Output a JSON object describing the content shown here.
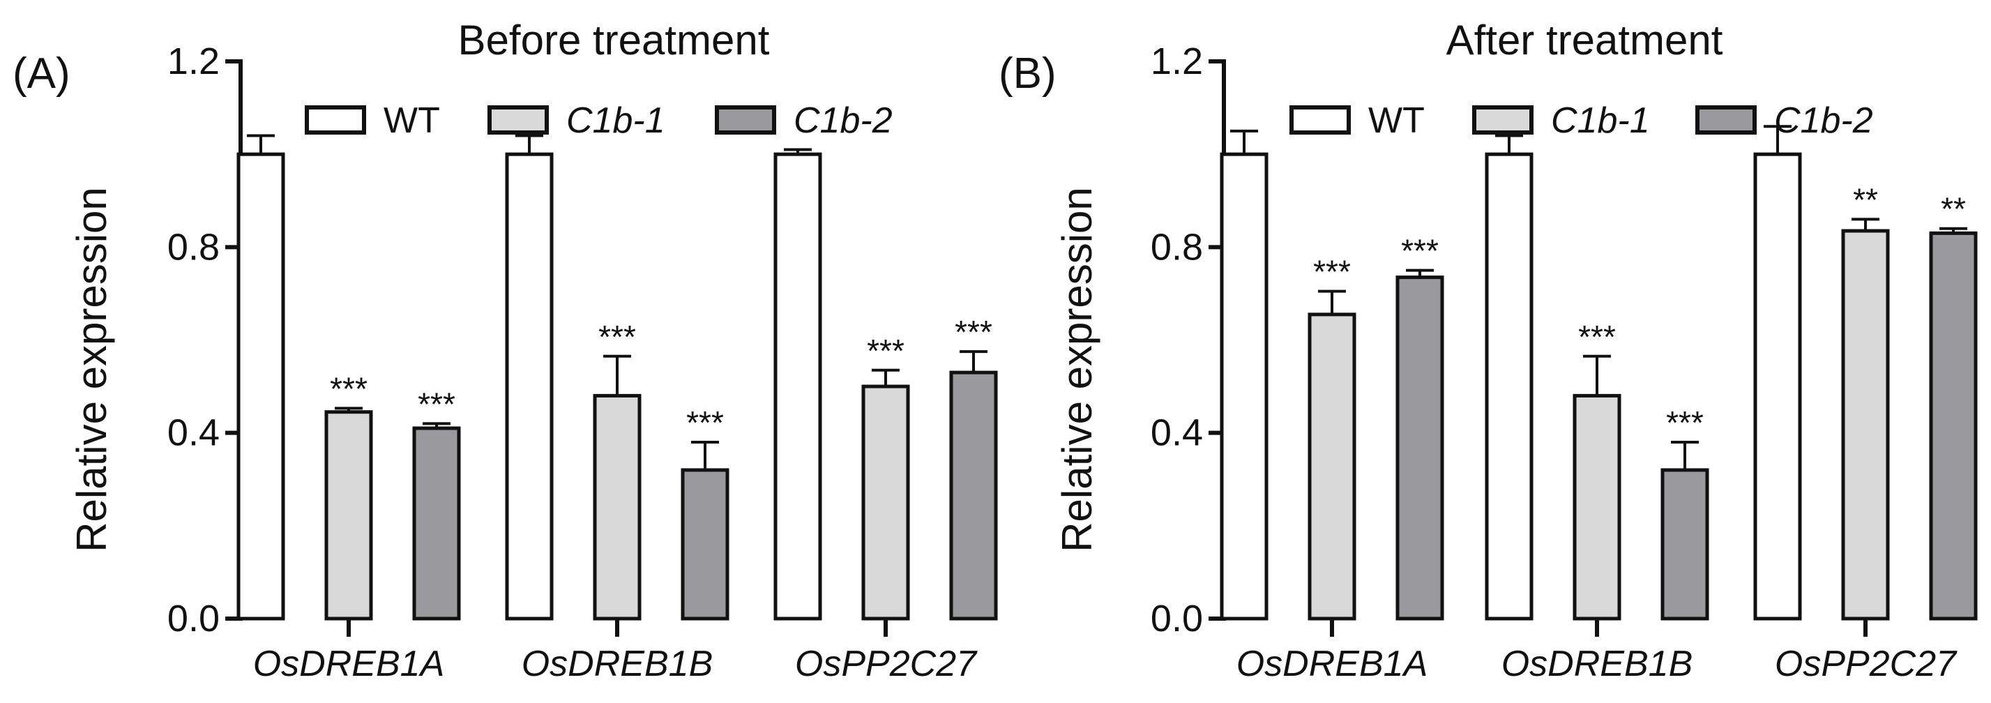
{
  "chart_data": [
    {
      "type": "bar",
      "panel_label": "(A)",
      "title": "Before treatment",
      "xlabel": "",
      "ylabel": "Relative expression",
      "ylim": [
        0,
        1.2
      ],
      "yticks": [
        "0.0",
        "0.4",
        "0.8",
        "1.2"
      ],
      "categories": [
        "OsDREB1A",
        "OsDREB1B",
        "OsPP2C27"
      ],
      "series": [
        {
          "name": "WT",
          "color": "#ffffff",
          "values": [
            1.0,
            1.0,
            1.0
          ],
          "errors": [
            0.04,
            0.04,
            0.01
          ],
          "annotations": [
            "",
            "",
            ""
          ]
        },
        {
          "name": "C1b-1",
          "color": "#d9d9d9",
          "values": [
            0.445,
            0.48,
            0.5
          ],
          "errors": [
            0.008,
            0.085,
            0.035
          ],
          "annotations": [
            "***",
            "***",
            "***"
          ]
        },
        {
          "name": "C1b-2",
          "color": "#9a9a9e",
          "values": [
            0.41,
            0.32,
            0.53
          ],
          "errors": [
            0.01,
            0.06,
            0.045
          ],
          "annotations": [
            "***",
            "***",
            "***"
          ]
        }
      ]
    },
    {
      "type": "bar",
      "panel_label": "(B)",
      "title": "After treatment",
      "xlabel": "",
      "ylabel": "Relative expression",
      "ylim": [
        0,
        1.2
      ],
      "yticks": [
        "0.0",
        "0.4",
        "0.8",
        "1.2"
      ],
      "categories": [
        "OsDREB1A",
        "OsDREB1B",
        "OsPP2C27"
      ],
      "series": [
        {
          "name": "WT",
          "color": "#ffffff",
          "values": [
            1.0,
            1.0,
            1.0
          ],
          "errors": [
            0.05,
            0.04,
            0.06
          ],
          "annotations": [
            "",
            "",
            ""
          ]
        },
        {
          "name": "C1b-1",
          "color": "#d9d9d9",
          "values": [
            0.655,
            0.48,
            0.835
          ],
          "errors": [
            0.05,
            0.085,
            0.025
          ],
          "annotations": [
            "***",
            "***",
            "**"
          ]
        },
        {
          "name": "C1b-2",
          "color": "#9a9a9e",
          "values": [
            0.735,
            0.32,
            0.83
          ],
          "errors": [
            0.015,
            0.06,
            0.01
          ],
          "annotations": [
            "***",
            "***",
            "**"
          ]
        }
      ]
    }
  ]
}
